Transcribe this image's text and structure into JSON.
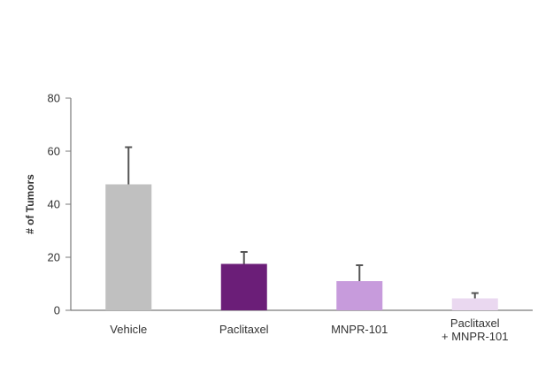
{
  "chart_data": {
    "type": "bar",
    "title": "",
    "xlabel": "",
    "ylabel": "# of Tumors",
    "ylim": [
      0,
      80
    ],
    "yticks": [
      0,
      20,
      40,
      60,
      80
    ],
    "grid": false,
    "categories": [
      {
        "lines": [
          "Vehicle"
        ]
      },
      {
        "lines": [
          "Paclitaxel"
        ]
      },
      {
        "lines": [
          "MNPR-101"
        ]
      },
      {
        "lines": [
          "Paclitaxel",
          "+ MNPR-101"
        ]
      }
    ],
    "values": [
      47.5,
      17.5,
      11,
      4.5
    ],
    "error_upper": [
      14,
      4.5,
      6,
      2
    ],
    "colors": [
      "#c0c0c0",
      "#6b1e78",
      "#c79bdc",
      "#ead8f0"
    ],
    "axis_color": "#7a7a7a"
  }
}
